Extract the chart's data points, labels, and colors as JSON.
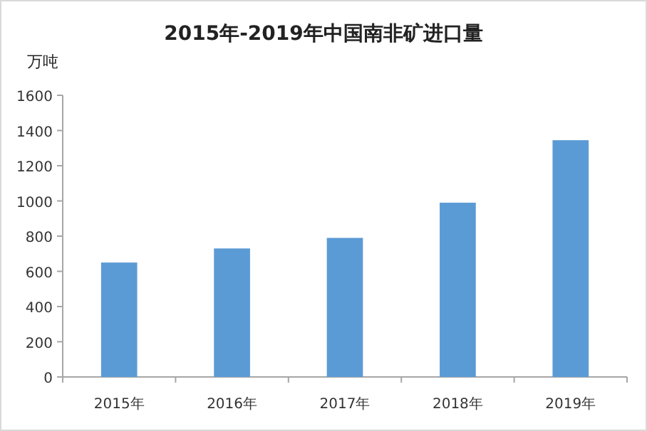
{
  "chart_data": {
    "type": "bar",
    "title": "2015年-2019年中国南非矿进口量",
    "ylabel": "万吨",
    "categories": [
      "2015年",
      "2016年",
      "2017年",
      "2018年",
      "2019年"
    ],
    "values": [
      650,
      730,
      790,
      990,
      1345
    ],
    "color": "#5b9bd5",
    "ylim": [
      0,
      1600
    ],
    "yticks": [
      0,
      200,
      400,
      600,
      800,
      1000,
      1200,
      1400,
      1600
    ]
  }
}
